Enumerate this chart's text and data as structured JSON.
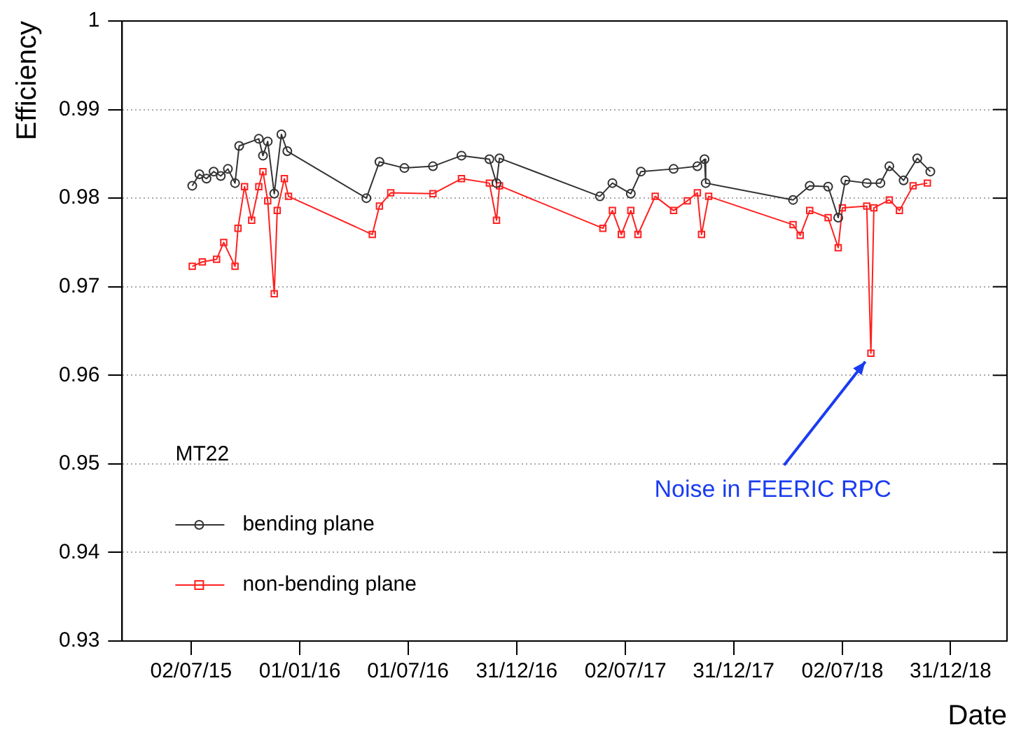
{
  "chart_data": {
    "type": "line",
    "xlabel": "Date",
    "ylabel": "Efficiency",
    "xlim": [
      "2015-03-08",
      "2019-04-05"
    ],
    "ylim": [
      0.93,
      1
    ],
    "xticks": [
      {
        "value": "2015-07-02",
        "label": "02/07/15"
      },
      {
        "value": "2016-01-01",
        "label": "01/01/16"
      },
      {
        "value": "2016-07-01",
        "label": "01/07/16"
      },
      {
        "value": "2016-12-31",
        "label": "31/12/16"
      },
      {
        "value": "2017-07-02",
        "label": "02/07/17"
      },
      {
        "value": "2017-12-31",
        "label": "31/12/17"
      },
      {
        "value": "2018-07-02",
        "label": "02/07/18"
      },
      {
        "value": "2018-12-31",
        "label": "31/12/18"
      }
    ],
    "yticks": [
      0.93,
      0.94,
      0.95,
      0.96,
      0.97,
      0.98,
      0.99,
      1
    ],
    "grid": "y",
    "legend": "bottom left",
    "legend_title": "MT22",
    "series": [
      {
        "name": "bending plane",
        "color": "#333333",
        "marker": "circle",
        "x": [
          "2015-07-04",
          "2015-07-16",
          "2015-07-28",
          "2015-08-09",
          "2015-08-21",
          "2015-09-02",
          "2015-09-14",
          "2015-09-21",
          "2015-10-24",
          "2015-10-31",
          "2015-11-08",
          "2015-11-19",
          "2015-12-01",
          "2015-12-11",
          "2016-04-22",
          "2016-05-14",
          "2016-06-25",
          "2016-08-12",
          "2016-09-29",
          "2016-11-15",
          "2016-11-27",
          "2016-12-02",
          "2017-05-20",
          "2017-06-10",
          "2017-07-11",
          "2017-07-28",
          "2017-09-21",
          "2017-10-31",
          "2017-11-12",
          "2017-11-14",
          "2018-04-10",
          "2018-05-08",
          "2018-06-08",
          "2018-06-25",
          "2018-07-07",
          "2018-08-12",
          "2018-09-04",
          "2018-09-19",
          "2018-10-13",
          "2018-11-05",
          "2018-11-27"
        ],
        "values": [
          0.9814,
          0.9827,
          0.9822,
          0.983,
          0.9825,
          0.9833,
          0.9817,
          0.9859,
          0.9867,
          0.9848,
          0.9864,
          0.9805,
          0.9872,
          0.9853,
          0.98,
          0.9841,
          0.9834,
          0.9836,
          0.9848,
          0.9844,
          0.9817,
          0.9845,
          0.9802,
          0.9817,
          0.9805,
          0.983,
          0.9833,
          0.9836,
          0.9844,
          0.9817,
          0.9798,
          0.9814,
          0.9813,
          0.9778,
          0.982,
          0.9817,
          0.9817,
          0.9836,
          0.982,
          0.9845,
          0.983
        ]
      },
      {
        "name": "non-bending plane",
        "color": "#ff2020",
        "marker": "square",
        "x": [
          "2015-07-04",
          "2015-07-21",
          "2015-08-14",
          "2015-08-26",
          "2015-09-14",
          "2015-09-19",
          "2015-09-30",
          "2015-10-12",
          "2015-10-24",
          "2015-10-31",
          "2015-11-08",
          "2015-11-19",
          "2015-11-24",
          "2015-12-06",
          "2015-12-13",
          "2016-05-02",
          "2016-05-14",
          "2016-06-02",
          "2016-08-12",
          "2016-09-29",
          "2016-11-15",
          "2016-11-27",
          "2016-12-02",
          "2017-05-25",
          "2017-06-10",
          "2017-06-25",
          "2017-07-11",
          "2017-07-23",
          "2017-08-21",
          "2017-09-21",
          "2017-10-14",
          "2017-10-31",
          "2017-11-07",
          "2017-11-19",
          "2018-04-10",
          "2018-04-22",
          "2018-05-08",
          "2018-06-08",
          "2018-06-25",
          "2018-07-02",
          "2018-08-12",
          "2018-08-19",
          "2018-08-24",
          "2018-09-19",
          "2018-10-06",
          "2018-10-29",
          "2018-11-22"
        ],
        "values": [
          0.9723,
          0.9728,
          0.9731,
          0.975,
          0.9723,
          0.9766,
          0.9813,
          0.9775,
          0.9813,
          0.983,
          0.9797,
          0.9692,
          0.9786,
          0.9822,
          0.9802,
          0.9759,
          0.9791,
          0.9806,
          0.9805,
          0.9822,
          0.9817,
          0.9775,
          0.9814,
          0.9766,
          0.9786,
          0.9759,
          0.9786,
          0.9759,
          0.9802,
          0.9786,
          0.9797,
          0.9806,
          0.9759,
          0.9802,
          0.977,
          0.9758,
          0.9786,
          0.9778,
          0.9744,
          0.9789,
          0.9791,
          0.9625,
          0.9789,
          0.9798,
          0.9786,
          0.9814,
          0.9817
        ]
      }
    ],
    "annotations": [
      {
        "text": "Noise in FEERIC RPC",
        "x": "2018-08-19",
        "y": 0.9625
      }
    ]
  }
}
